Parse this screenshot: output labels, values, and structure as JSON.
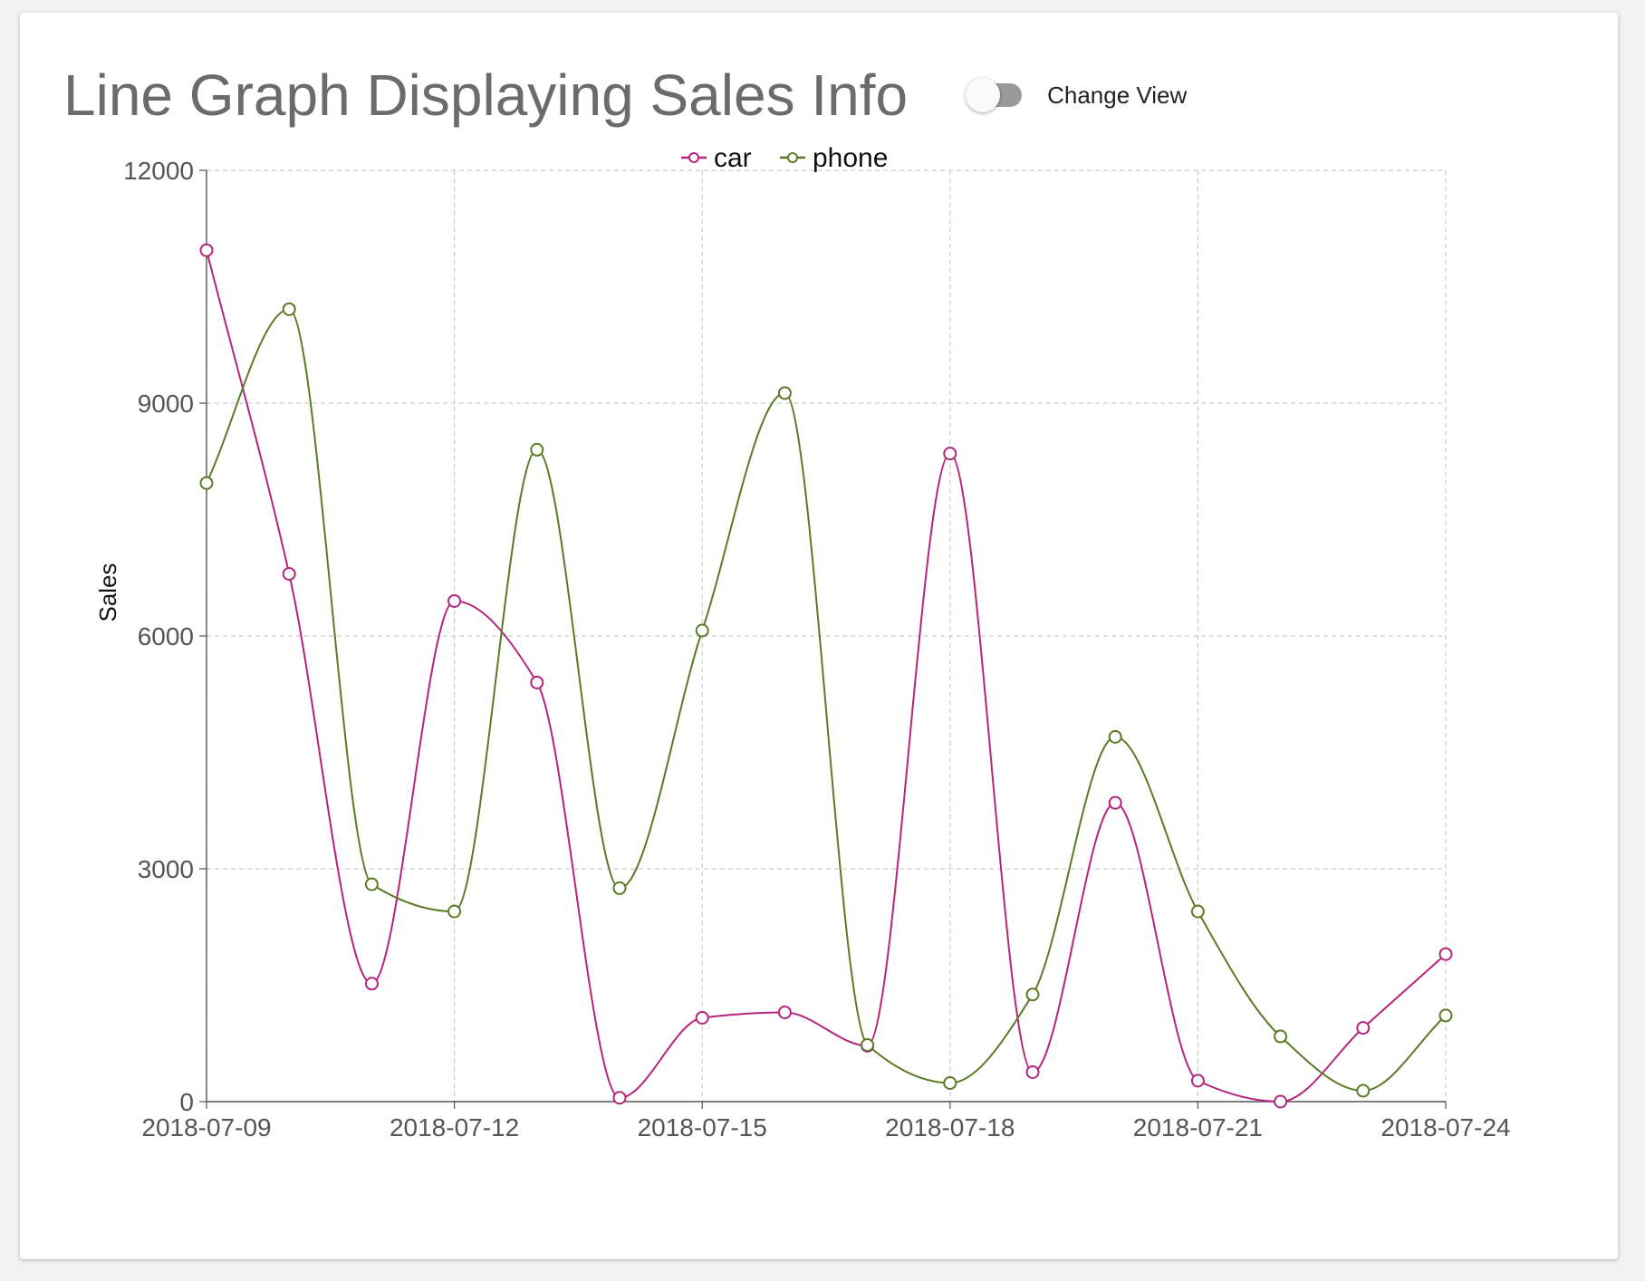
{
  "header": {
    "title": "Line Graph Displaying Sales Info",
    "toggle_label": "Change View",
    "toggle_on": false
  },
  "colors": {
    "car": "#b5247e",
    "phone": "#5a7a25",
    "grid": "#cccccc",
    "axis": "#555555"
  },
  "chart_data": {
    "type": "line",
    "title": "",
    "xlabel": "",
    "ylabel": "Sales",
    "x": [
      "2018-07-09",
      "2018-07-10",
      "2018-07-11",
      "2018-07-12",
      "2018-07-13",
      "2018-07-14",
      "2018-07-15",
      "2018-07-16",
      "2018-07-17",
      "2018-07-18",
      "2018-07-19",
      "2018-07-20",
      "2018-07-21",
      "2018-07-22",
      "2018-07-23",
      "2018-07-24"
    ],
    "x_ticks": [
      "2018-07-09",
      "2018-07-12",
      "2018-07-15",
      "2018-07-18",
      "2018-07-21",
      "2018-07-24"
    ],
    "ylim": [
      0,
      12000
    ],
    "y_ticks": [
      0,
      3000,
      6000,
      9000,
      12000
    ],
    "grid": true,
    "legend_position": "top-center",
    "curve": "smooth",
    "series": [
      {
        "name": "car",
        "values": [
          10970,
          6800,
          1520,
          6450,
          5400,
          50,
          1080,
          1150,
          720,
          8350,
          380,
          3850,
          270,
          0,
          950,
          1900
        ]
      },
      {
        "name": "phone",
        "values": [
          7970,
          10210,
          2800,
          2450,
          8400,
          2750,
          6070,
          9130,
          730,
          240,
          1380,
          4700,
          2450,
          840,
          140,
          1110
        ]
      }
    ]
  }
}
